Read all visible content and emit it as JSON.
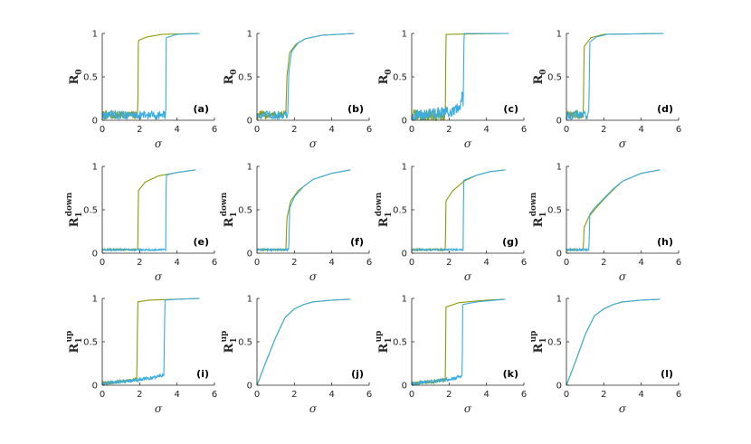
{
  "colors": {
    "up": "#8a9a0a",
    "down": "#3aace0",
    "axis": "#262626"
  },
  "chart_data": [
    {
      "type": "line",
      "panel": "(a)",
      "y_base": "R",
      "y_sub": "0",
      "y_sup": "",
      "xlabel": "σ",
      "xlim": [
        0,
        6
      ],
      "ylim": [
        0,
        1
      ],
      "x_ticks": [
        "0",
        "2",
        "4",
        "6"
      ],
      "y_ticks": [
        "0",
        "0.5",
        "1"
      ],
      "series": [
        {
          "color": "up",
          "points": [
            [
              0,
              0.06
            ],
            [
              1.9,
              0.06
            ],
            [
              1.93,
              0.92
            ],
            [
              2.4,
              0.96
            ],
            [
              3.2,
              0.99
            ],
            [
              5.2,
              1.0
            ]
          ]
        },
        {
          "color": "down",
          "points": [
            [
              0,
              0.06
            ],
            [
              3.4,
              0.06
            ],
            [
              3.42,
              0.95
            ],
            [
              4.0,
              0.99
            ],
            [
              5.2,
              1.0
            ]
          ]
        }
      ],
      "noise": 0.05
    },
    {
      "type": "line",
      "panel": "(b)",
      "y_base": "R",
      "y_sub": "0",
      "y_sup": "",
      "xlabel": "σ",
      "xlim": [
        0,
        6
      ],
      "ylim": [
        0,
        1
      ],
      "x_ticks": [
        "0",
        "2",
        "4",
        "6"
      ],
      "y_ticks": [
        "0",
        "0.5",
        "1"
      ],
      "series": [
        {
          "color": "up",
          "points": [
            [
              0,
              0.06
            ],
            [
              1.55,
              0.06
            ],
            [
              1.6,
              0.5
            ],
            [
              1.75,
              0.78
            ],
            [
              2.1,
              0.88
            ],
            [
              2.6,
              0.94
            ],
            [
              3.5,
              0.98
            ],
            [
              5.2,
              1.0
            ]
          ]
        },
        {
          "color": "down",
          "points": [
            [
              0,
              0.06
            ],
            [
              1.65,
              0.06
            ],
            [
              1.7,
              0.55
            ],
            [
              1.85,
              0.79
            ],
            [
              2.2,
              0.89
            ],
            [
              2.6,
              0.94
            ],
            [
              3.5,
              0.98
            ],
            [
              5.2,
              1.0
            ]
          ]
        }
      ],
      "noise": 0.05
    },
    {
      "type": "line",
      "panel": "(c)",
      "y_base": "R",
      "y_sub": "0",
      "y_sup": "",
      "xlabel": "σ",
      "xlim": [
        0,
        6
      ],
      "ylim": [
        0,
        1
      ],
      "x_ticks": [
        "0",
        "2",
        "4",
        "6"
      ],
      "y_ticks": [
        "0",
        "0.5",
        "1"
      ],
      "series": [
        {
          "color": "up",
          "points": [
            [
              0,
              0.05
            ],
            [
              1.8,
              0.05
            ],
            [
              1.83,
              0.99
            ],
            [
              5.2,
              1.0
            ]
          ]
        },
        {
          "color": "down",
          "points": [
            [
              0,
              0.05
            ],
            [
              2.3,
              0.1
            ],
            [
              2.6,
              0.15
            ],
            [
              2.7,
              0.35
            ],
            [
              2.75,
              0.15
            ],
            [
              2.8,
              1.0
            ],
            [
              5.2,
              1.0
            ]
          ]
        }
      ],
      "noise": 0.07
    },
    {
      "type": "line",
      "panel": "(d)",
      "y_base": "R",
      "y_sub": "0",
      "y_sup": "",
      "xlabel": "σ",
      "xlim": [
        0,
        6
      ],
      "ylim": [
        0,
        1
      ],
      "x_ticks": [
        "0",
        "2",
        "4",
        "6"
      ],
      "y_ticks": [
        "0",
        "0.5",
        "1"
      ],
      "series": [
        {
          "color": "up",
          "points": [
            [
              0,
              0.06
            ],
            [
              0.9,
              0.06
            ],
            [
              0.95,
              0.85
            ],
            [
              1.3,
              0.95
            ],
            [
              2.0,
              0.99
            ],
            [
              5.2,
              1.0
            ]
          ]
        },
        {
          "color": "down",
          "points": [
            [
              0,
              0.06
            ],
            [
              1.2,
              0.06
            ],
            [
              1.25,
              0.9
            ],
            [
              1.6,
              0.96
            ],
            [
              2.2,
              0.99
            ],
            [
              5.2,
              1.0
            ]
          ]
        }
      ],
      "noise": 0.05
    },
    {
      "type": "line",
      "panel": "(e)",
      "y_base": "R",
      "y_sub": "1",
      "y_sup": "down",
      "xlabel": "σ",
      "xlim": [
        0,
        6
      ],
      "ylim": [
        0,
        1
      ],
      "x_ticks": [
        "0",
        "2",
        "4",
        "6"
      ],
      "y_ticks": [
        "0",
        "0.5",
        "1"
      ],
      "series": [
        {
          "color": "up",
          "points": [
            [
              0,
              0.04
            ],
            [
              1.9,
              0.04
            ],
            [
              1.93,
              0.72
            ],
            [
              2.3,
              0.82
            ],
            [
              3.0,
              0.89
            ],
            [
              4.0,
              0.93
            ],
            [
              5.0,
              0.96
            ]
          ]
        },
        {
          "color": "down",
          "points": [
            [
              0,
              0.04
            ],
            [
              3.4,
              0.04
            ],
            [
              3.42,
              0.9
            ],
            [
              4.0,
              0.93
            ],
            [
              5.0,
              0.96
            ]
          ]
        }
      ],
      "noise": 0.01
    },
    {
      "type": "line",
      "panel": "(f)",
      "y_base": "R",
      "y_sub": "1",
      "y_sup": "down",
      "xlabel": "σ",
      "xlim": [
        0,
        6
      ],
      "ylim": [
        0,
        1
      ],
      "x_ticks": [
        "0",
        "2",
        "4",
        "6"
      ],
      "y_ticks": [
        "0",
        "0.5",
        "1"
      ],
      "series": [
        {
          "color": "up",
          "points": [
            [
              0,
              0.04
            ],
            [
              1.55,
              0.04
            ],
            [
              1.6,
              0.4
            ],
            [
              1.8,
              0.6
            ],
            [
              2.2,
              0.72
            ],
            [
              3.0,
              0.85
            ],
            [
              4.0,
              0.92
            ],
            [
              5.0,
              0.96
            ]
          ]
        },
        {
          "color": "down",
          "points": [
            [
              0,
              0.04
            ],
            [
              1.7,
              0.04
            ],
            [
              1.75,
              0.52
            ],
            [
              2.0,
              0.65
            ],
            [
              2.5,
              0.77
            ],
            [
              3.0,
              0.85
            ],
            [
              4.0,
              0.92
            ],
            [
              5.0,
              0.96
            ]
          ]
        }
      ],
      "noise": 0.01
    },
    {
      "type": "line",
      "panel": "(g)",
      "y_base": "R",
      "y_sub": "1",
      "y_sup": "down",
      "xlabel": "σ",
      "xlim": [
        0,
        6
      ],
      "ylim": [
        0,
        1
      ],
      "x_ticks": [
        "0",
        "2",
        "4",
        "6"
      ],
      "y_ticks": [
        "0",
        "0.5",
        "1"
      ],
      "series": [
        {
          "color": "up",
          "points": [
            [
              0,
              0.04
            ],
            [
              1.8,
              0.04
            ],
            [
              1.83,
              0.6
            ],
            [
              2.2,
              0.72
            ],
            [
              2.8,
              0.83
            ],
            [
              3.5,
              0.9
            ],
            [
              4.2,
              0.94
            ],
            [
              5.0,
              0.96
            ]
          ]
        },
        {
          "color": "down",
          "points": [
            [
              0,
              0.04
            ],
            [
              2.75,
              0.04
            ],
            [
              2.78,
              0.84
            ],
            [
              3.5,
              0.9
            ],
            [
              4.2,
              0.94
            ],
            [
              5.0,
              0.96
            ]
          ]
        }
      ],
      "noise": 0.01
    },
    {
      "type": "line",
      "panel": "(h)",
      "y_base": "R",
      "y_sub": "1",
      "y_sup": "down",
      "xlabel": "σ",
      "xlim": [
        0,
        6
      ],
      "ylim": [
        0,
        1
      ],
      "x_ticks": [
        "0",
        "2",
        "4",
        "6"
      ],
      "y_ticks": [
        "0",
        "0.5",
        "1"
      ],
      "series": [
        {
          "color": "up",
          "points": [
            [
              0,
              0.04
            ],
            [
              0.9,
              0.04
            ],
            [
              0.95,
              0.3
            ],
            [
              1.2,
              0.42
            ],
            [
              1.5,
              0.5
            ],
            [
              2.0,
              0.62
            ],
            [
              2.5,
              0.73
            ],
            [
              3.0,
              0.83
            ],
            [
              4.0,
              0.92
            ],
            [
              5.0,
              0.96
            ]
          ]
        },
        {
          "color": "down",
          "points": [
            [
              0,
              0.04
            ],
            [
              1.2,
              0.04
            ],
            [
              1.25,
              0.45
            ],
            [
              1.5,
              0.52
            ],
            [
              2.0,
              0.63
            ],
            [
              2.5,
              0.74
            ],
            [
              3.0,
              0.83
            ],
            [
              4.0,
              0.92
            ],
            [
              5.0,
              0.96
            ]
          ]
        }
      ],
      "noise": 0.01
    },
    {
      "type": "line",
      "panel": "(i)",
      "y_base": "R",
      "y_sub": "1",
      "y_sup": "up",
      "xlabel": "σ",
      "xlim": [
        0,
        6
      ],
      "ylim": [
        0,
        1
      ],
      "x_ticks": [
        "0",
        "2",
        "4",
        "6"
      ],
      "y_ticks": [
        "0",
        "0.5",
        "1"
      ],
      "series": [
        {
          "color": "up",
          "points": [
            [
              0,
              0.02
            ],
            [
              1.0,
              0.04
            ],
            [
              1.85,
              0.07
            ],
            [
              1.9,
              0.96
            ],
            [
              2.5,
              0.98
            ],
            [
              5.2,
              1.0
            ]
          ]
        },
        {
          "color": "down",
          "points": [
            [
              0,
              0.02
            ],
            [
              1.5,
              0.05
            ],
            [
              2.5,
              0.08
            ],
            [
              3.3,
              0.12
            ],
            [
              3.35,
              0.98
            ],
            [
              4.0,
              0.99
            ],
            [
              5.2,
              1.0
            ]
          ]
        }
      ],
      "noise": 0.02
    },
    {
      "type": "line",
      "panel": "(j)",
      "y_base": "R",
      "y_sub": "1",
      "y_sup": "up",
      "xlabel": "σ",
      "xlim": [
        0,
        6
      ],
      "ylim": [
        0,
        1
      ],
      "x_ticks": [
        "0",
        "2",
        "4",
        "6"
      ],
      "y_ticks": [
        "0",
        "0.5",
        "1"
      ],
      "series": [
        {
          "color": "up",
          "points": [
            [
              0,
              0.0
            ],
            [
              0.5,
              0.28
            ],
            [
              1.0,
              0.55
            ],
            [
              1.5,
              0.78
            ],
            [
              2.0,
              0.88
            ],
            [
              2.5,
              0.93
            ],
            [
              3.0,
              0.96
            ],
            [
              4.0,
              0.98
            ],
            [
              5.0,
              0.99
            ]
          ]
        },
        {
          "color": "down",
          "points": [
            [
              0,
              0.0
            ],
            [
              0.5,
              0.28
            ],
            [
              1.0,
              0.55
            ],
            [
              1.5,
              0.78
            ],
            [
              2.0,
              0.88
            ],
            [
              2.5,
              0.93
            ],
            [
              3.0,
              0.96
            ],
            [
              4.0,
              0.98
            ],
            [
              5.0,
              0.99
            ]
          ]
        }
      ],
      "noise": 0
    },
    {
      "type": "line",
      "panel": "(k)",
      "y_base": "R",
      "y_sub": "1",
      "y_sup": "up",
      "xlabel": "σ",
      "xlim": [
        0,
        6
      ],
      "ylim": [
        0,
        1
      ],
      "x_ticks": [
        "0",
        "2",
        "4",
        "6"
      ],
      "y_ticks": [
        "0",
        "0.5",
        "1"
      ],
      "series": [
        {
          "color": "up",
          "points": [
            [
              0,
              0.02
            ],
            [
              1.0,
              0.04
            ],
            [
              1.8,
              0.06
            ],
            [
              1.83,
              0.9
            ],
            [
              2.5,
              0.95
            ],
            [
              4.0,
              0.98
            ],
            [
              5.0,
              0.99
            ]
          ]
        },
        {
          "color": "down",
          "points": [
            [
              0,
              0.02
            ],
            [
              1.5,
              0.05
            ],
            [
              2.7,
              0.1
            ],
            [
              2.73,
              0.93
            ],
            [
              3.5,
              0.96
            ],
            [
              5.0,
              0.99
            ]
          ]
        }
      ],
      "noise": 0.02
    },
    {
      "type": "line",
      "panel": "(l)",
      "y_base": "R",
      "y_sub": "1",
      "y_sup": "up",
      "xlabel": "σ",
      "xlim": [
        0,
        6
      ],
      "ylim": [
        0,
        1
      ],
      "x_ticks": [
        "0",
        "2",
        "4",
        "6"
      ],
      "y_ticks": [
        "0",
        "0.5",
        "1"
      ],
      "series": [
        {
          "color": "up",
          "points": [
            [
              0,
              0.0
            ],
            [
              0.5,
              0.28
            ],
            [
              1.0,
              0.58
            ],
            [
              1.5,
              0.8
            ],
            [
              2.0,
              0.88
            ],
            [
              2.5,
              0.93
            ],
            [
              3.0,
              0.96
            ],
            [
              4.0,
              0.98
            ],
            [
              5.0,
              0.99
            ]
          ]
        },
        {
          "color": "down",
          "points": [
            [
              0,
              0.0
            ],
            [
              0.5,
              0.28
            ],
            [
              1.0,
              0.58
            ],
            [
              1.5,
              0.8
            ],
            [
              2.0,
              0.88
            ],
            [
              2.5,
              0.93
            ],
            [
              3.0,
              0.96
            ],
            [
              4.0,
              0.98
            ],
            [
              5.0,
              0.99
            ]
          ]
        }
      ],
      "noise": 0
    }
  ]
}
